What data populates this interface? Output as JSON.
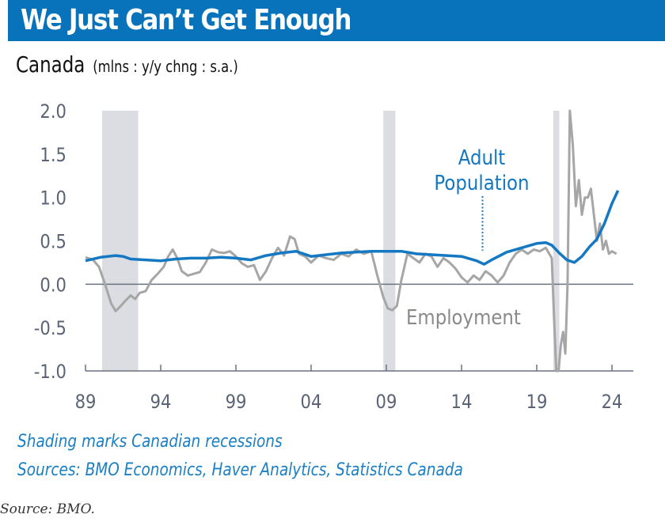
{
  "header": {
    "title": "We Just Can’t Get Enough",
    "subtitle_main": "Canada",
    "subtitle_units": "(mlns : y/y chng : s.a.)"
  },
  "colors": {
    "brand_blue": "#0873bb",
    "population_line": "#1478c2",
    "employment_line": "#a6a6a6",
    "recession_shade": "#dcdde2",
    "axis": "#6b7280",
    "tick_label": "#5b6475"
  },
  "chart_data": {
    "type": "line",
    "title": "We Just Can’t Get Enough",
    "subtitle": "Canada (mlns : y/y chng : s.a.)",
    "xlabel": "",
    "ylabel": "mlns, y/y change",
    "xlim": [
      1989,
      2025.5
    ],
    "ylim": [
      -1.0,
      2.0
    ],
    "grid": false,
    "x_ticks": [
      1989,
      1994,
      1999,
      2004,
      2009,
      2014,
      2019,
      2024
    ],
    "x_tick_labels": [
      "89",
      "94",
      "99",
      "04",
      "09",
      "14",
      "19",
      "24"
    ],
    "y_ticks": [
      -1.0,
      -0.5,
      0.0,
      0.5,
      1.0,
      1.5,
      2.0
    ],
    "y_tick_labels": [
      "-1.0",
      "-0.5",
      "0.0",
      "0.5",
      "1.0",
      "1.5",
      "2.0"
    ],
    "recessions": [
      {
        "start": 1990.1,
        "end": 1992.5
      },
      {
        "start": 2008.8,
        "end": 2009.6
      },
      {
        "start": 2020.1,
        "end": 2020.5
      }
    ],
    "series": [
      {
        "name": "Adult Population",
        "label_lines": [
          "Adult",
          "Population"
        ],
        "x": [
          1989.0,
          1990.0,
          1991.0,
          1991.5,
          1992.0,
          1993.0,
          1994.0,
          1995.0,
          1996.0,
          1997.0,
          1998.0,
          1999.0,
          2000.0,
          2001.0,
          2002.0,
          2003.0,
          2004.0,
          2005.0,
          2006.0,
          2007.0,
          2008.0,
          2009.0,
          2010.0,
          2011.0,
          2012.0,
          2013.0,
          2014.0,
          2015.0,
          2015.5,
          2016.0,
          2017.0,
          2018.0,
          2019.0,
          2019.6,
          2020.0,
          2020.5,
          2021.0,
          2021.5,
          2022.0,
          2022.5,
          2023.0,
          2023.5,
          2024.0,
          2024.4
        ],
        "values": [
          0.27,
          0.31,
          0.33,
          0.32,
          0.29,
          0.28,
          0.27,
          0.29,
          0.3,
          0.3,
          0.31,
          0.3,
          0.28,
          0.33,
          0.36,
          0.38,
          0.32,
          0.34,
          0.36,
          0.37,
          0.38,
          0.38,
          0.38,
          0.35,
          0.34,
          0.33,
          0.32,
          0.27,
          0.23,
          0.28,
          0.37,
          0.42,
          0.47,
          0.48,
          0.45,
          0.36,
          0.28,
          0.25,
          0.32,
          0.43,
          0.52,
          0.7,
          0.93,
          1.08
        ]
      },
      {
        "name": "Employment",
        "x": [
          1989.0,
          1989.5,
          1989.9,
          1990.3,
          1990.7,
          1991.0,
          1991.3,
          1991.6,
          1992.0,
          1992.3,
          1992.6,
          1993.0,
          1993.4,
          1993.8,
          1994.2,
          1994.5,
          1994.8,
          1995.1,
          1995.4,
          1995.8,
          1996.2,
          1996.6,
          1997.0,
          1997.4,
          1997.8,
          1998.2,
          1998.6,
          1999.0,
          1999.4,
          1999.8,
          2000.2,
          2000.6,
          2001.0,
          2001.4,
          2001.8,
          2002.2,
          2002.6,
          2002.9,
          2003.2,
          2003.6,
          2004.0,
          2004.5,
          2005.0,
          2005.5,
          2006.0,
          2006.5,
          2007.0,
          2007.5,
          2008.0,
          2008.4,
          2008.8,
          2009.1,
          2009.4,
          2009.7,
          2010.0,
          2010.4,
          2010.8,
          2011.2,
          2011.6,
          2012.0,
          2012.4,
          2012.8,
          2013.2,
          2013.6,
          2014.0,
          2014.4,
          2014.8,
          2015.2,
          2015.6,
          2016.0,
          2016.4,
          2016.8,
          2017.2,
          2017.6,
          2018.0,
          2018.4,
          2018.8,
          2019.2,
          2019.6,
          2020.0,
          2020.15,
          2020.3,
          2020.45,
          2020.6,
          2020.75,
          2020.9,
          2021.05,
          2021.2,
          2021.4,
          2021.6,
          2021.8,
          2022.0,
          2022.2,
          2022.4,
          2022.6,
          2022.8,
          2023.0,
          2023.2,
          2023.4,
          2023.6,
          2023.8,
          2024.0,
          2024.3
        ],
        "values": [
          0.31,
          0.28,
          0.2,
          0.0,
          -0.22,
          -0.31,
          -0.26,
          -0.2,
          -0.13,
          -0.17,
          -0.1,
          -0.08,
          0.05,
          0.12,
          0.2,
          0.32,
          0.4,
          0.3,
          0.15,
          0.1,
          0.12,
          0.14,
          0.25,
          0.4,
          0.37,
          0.36,
          0.38,
          0.32,
          0.24,
          0.2,
          0.22,
          0.05,
          0.15,
          0.3,
          0.42,
          0.33,
          0.55,
          0.52,
          0.35,
          0.32,
          0.25,
          0.33,
          0.3,
          0.28,
          0.35,
          0.32,
          0.4,
          0.35,
          0.38,
          0.1,
          -0.15,
          -0.28,
          -0.3,
          -0.25,
          0.05,
          0.35,
          0.3,
          0.25,
          0.35,
          0.32,
          0.2,
          0.3,
          0.25,
          0.18,
          0.08,
          0.02,
          0.1,
          0.05,
          0.15,
          0.1,
          0.02,
          0.1,
          0.25,
          0.35,
          0.4,
          0.35,
          0.4,
          0.38,
          0.42,
          0.3,
          -0.4,
          -1.1,
          -1.2,
          -0.7,
          -0.55,
          -0.8,
          0.0,
          2.0,
          1.6,
          0.9,
          1.2,
          0.8,
          1.0,
          1.0,
          1.1,
          0.8,
          0.5,
          0.7,
          0.4,
          0.5,
          0.35,
          0.38,
          0.35
        ]
      }
    ],
    "annotations": [
      {
        "text": "Adult Population",
        "points_to_year": 2015.5
      },
      {
        "text": "Employment",
        "near_year": 2014.0
      }
    ]
  },
  "footer": {
    "note": "Shading marks Canadian recessions",
    "sources": "Sources: BMO Economics, Haver Analytics, Statistics Canada",
    "credit": "Source: BMO."
  }
}
